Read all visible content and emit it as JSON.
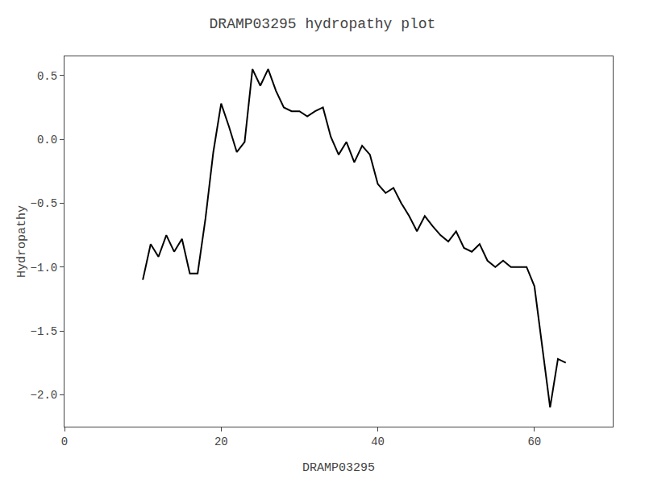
{
  "chart_data": {
    "type": "line",
    "title": "DRAMP03295 hydropathy plot",
    "xlabel": "DRAMP03295",
    "ylabel": "Hydropathy",
    "color": "#000000",
    "grid": false,
    "xlim": [
      0,
      70
    ],
    "ylim": [
      -2.25,
      0.65
    ],
    "xticks": [
      0,
      20,
      40,
      60
    ],
    "yticks": [
      0.5,
      {
        "value": 0.0,
        "label": "0.0"
      },
      {
        "value": -0.5,
        "label": "−0.5"
      },
      {
        "value": -1.0,
        "label": "−1.0"
      },
      {
        "value": -1.5,
        "label": "−1.5"
      },
      {
        "value": -2.0,
        "label": "−2.0"
      }
    ],
    "x": [
      10,
      11,
      12,
      13,
      14,
      15,
      16,
      17,
      18,
      19,
      20,
      21,
      22,
      23,
      24,
      25,
      26,
      27,
      28,
      29,
      30,
      31,
      32,
      33,
      34,
      35,
      36,
      37,
      38,
      39,
      40,
      41,
      42,
      43,
      44,
      45,
      46,
      47,
      48,
      49,
      50,
      51,
      52,
      53,
      54,
      55,
      56,
      57,
      58,
      59,
      60,
      61,
      62,
      63,
      64
    ],
    "values": [
      -1.1,
      -0.82,
      -0.92,
      -0.75,
      -0.88,
      -0.78,
      -1.05,
      -1.05,
      -0.62,
      -0.1,
      0.28,
      0.1,
      -0.1,
      -0.02,
      0.55,
      0.42,
      0.55,
      0.38,
      0.25,
      0.22,
      0.22,
      0.18,
      0.22,
      0.25,
      0.02,
      -0.12,
      -0.02,
      -0.18,
      -0.05,
      -0.12,
      -0.35,
      -0.42,
      -0.38,
      -0.5,
      -0.6,
      -0.72,
      -0.6,
      -0.68,
      -0.75,
      -0.8,
      -0.72,
      -0.85,
      -0.88,
      -0.82,
      -0.95,
      -1.0,
      -0.95,
      -1.0,
      -1.0,
      -1.0,
      -1.15,
      -1.62,
      -2.1,
      -1.72,
      -1.75
    ]
  }
}
